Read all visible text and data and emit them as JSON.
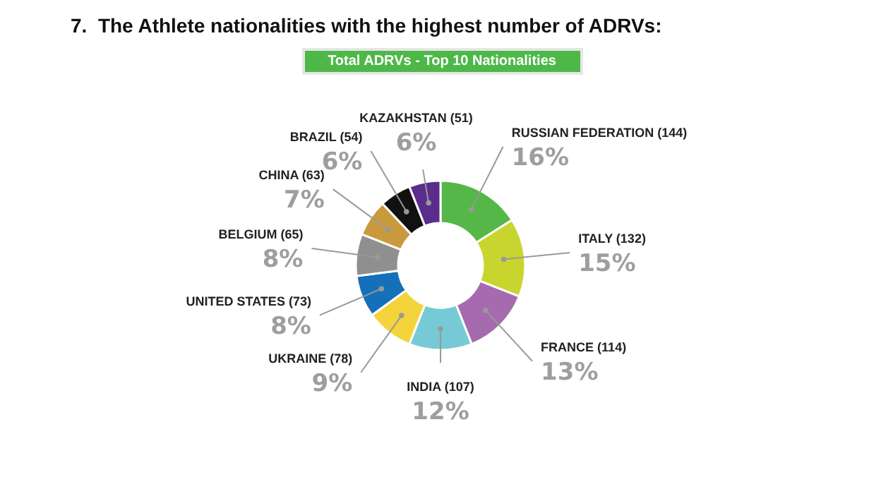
{
  "chart_data": {
    "type": "donut",
    "title": "7.  The Athlete nationalities with the highest number of ADRVs:",
    "subtitle": "Total ADRVs - Top 10 Nationalities",
    "categories": [
      "RUSSIAN FEDERATION (144)",
      "ITALY (132)",
      "FRANCE (114)",
      "INDIA (107)",
      "UKRAINE (78)",
      "UNITED STATES (73)",
      "BELGIUM (65)",
      "CHINA (63)",
      "BRAZIL (54)",
      "KAZAKHSTAN (51)"
    ],
    "values": [
      16,
      15,
      13,
      12,
      9,
      8,
      8,
      7,
      6,
      6
    ],
    "value_labels": [
      "16%",
      "15%",
      "13%",
      "12%",
      "9%",
      "8%",
      "8%",
      "7%",
      "6%",
      "6%"
    ],
    "colors": [
      "#55b748",
      "#c8d52f",
      "#a66bae",
      "#76cad6",
      "#f3d43a",
      "#1570b9",
      "#8f8f8f",
      "#c99a3d",
      "#111111",
      "#5a2d8c"
    ]
  }
}
